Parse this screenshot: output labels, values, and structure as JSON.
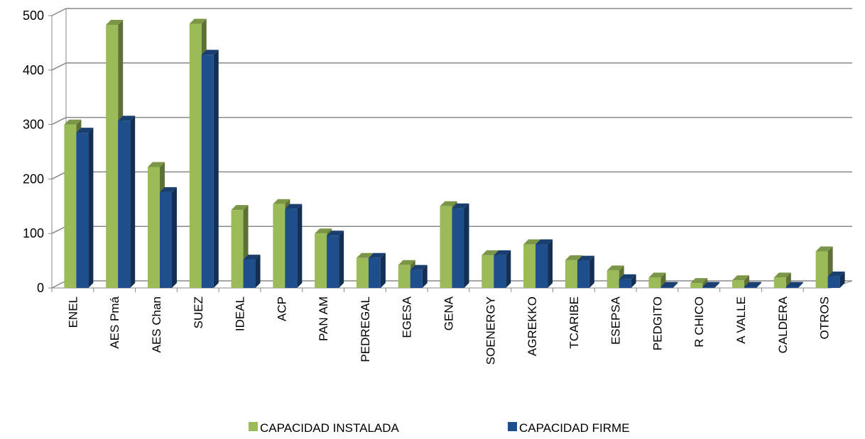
{
  "chart_data": {
    "type": "bar3d",
    "categories": [
      "ENEL",
      "AES Pmá",
      "AES Chan",
      "SUEZ",
      "IDEAL",
      "ACP",
      "PAN AM",
      "PEDREGAL",
      "EGESA",
      "GENA",
      "SOENERGY",
      "AGREKKO",
      "TCARIBE",
      "ESEPSA",
      "PEDGITO",
      "R CHICO",
      "A VALLE",
      "CALDERA",
      "OTROS"
    ],
    "series": [
      {
        "name": "CAPACIDAD INSTALADA",
        "color": "#9bbb59",
        "values": [
          300,
          483,
          222,
          485,
          143,
          154,
          100,
          55,
          42,
          150,
          60,
          80,
          51,
          32,
          19,
          9,
          14,
          19,
          67
        ]
      },
      {
        "name": "CAPACIDAD FIRME",
        "color": "#1f4e8c",
        "values": [
          285,
          307,
          176,
          428,
          52,
          145,
          96,
          55,
          33,
          146,
          60,
          80,
          50,
          16,
          2,
          2,
          2,
          2,
          21
        ]
      }
    ],
    "ylim": [
      0,
      500
    ],
    "yticks": [
      0,
      100,
      200,
      300,
      400,
      500
    ],
    "grid": true,
    "legend": "bottom"
  }
}
